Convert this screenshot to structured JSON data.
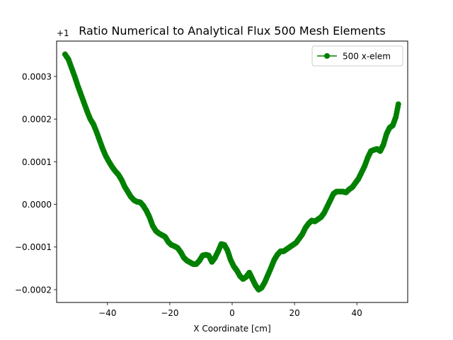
{
  "chart_data": {
    "type": "line",
    "title": "Ratio Numerical to Analytical Flux 500 Mesh Elements",
    "xlabel": "X Coordinate [cm]",
    "ylabel": "",
    "y_offset_label": "+1",
    "xlim": [
      -56.3,
      56.3
    ],
    "ylim": [
      -0.00023,
      0.000383
    ],
    "x_ticks": [
      -40,
      -20,
      0,
      20,
      40
    ],
    "x_tick_labels": [
      "−40",
      "−20",
      "0",
      "20",
      "40"
    ],
    "y_ticks": [
      -0.0002,
      -0.0001,
      0.0,
      0.0001,
      0.0002,
      0.0003
    ],
    "y_tick_labels": [
      "−0.0002",
      "−0.0001",
      "0.0000",
      "0.0001",
      "0.0002",
      "0.0003"
    ],
    "grid": false,
    "legend_position": "top-right",
    "series": [
      {
        "name": "500 x-elem",
        "color": "#008000",
        "marker": "circle",
        "x": [
          -53.6,
          -52.5,
          -51.5,
          -50.5,
          -49.5,
          -48.5,
          -47.5,
          -46.5,
          -45.5,
          -44.5,
          -43.5,
          -42.5,
          -41.5,
          -40.5,
          -39.5,
          -38.5,
          -37.5,
          -36.5,
          -35.5,
          -34.5,
          -33.5,
          -32.5,
          -31.5,
          -30.5,
          -29.5,
          -28.5,
          -27.5,
          -26.5,
          -25.5,
          -24.5,
          -23.5,
          -22.5,
          -21.5,
          -20.5,
          -19.5,
          -18.5,
          -17.5,
          -16.5,
          -15.5,
          -14.5,
          -13.5,
          -12.5,
          -11.5,
          -10.5,
          -9.5,
          -8.5,
          -7.5,
          -6.5,
          -5.5,
          -4.5,
          -3.5,
          -2.5,
          -1.5,
          -0.5,
          0.5,
          1.5,
          2.5,
          3.5,
          4.5,
          5.5,
          6.5,
          7.5,
          8.5,
          9.5,
          10.5,
          11.5,
          12.5,
          13.5,
          14.5,
          15.5,
          16.5,
          17.5,
          18.5,
          19.5,
          20.5,
          21.5,
          22.5,
          23.5,
          24.5,
          25.5,
          26.5,
          27.5,
          28.5,
          29.5,
          30.5,
          31.5,
          32.5,
          33.5,
          34.5,
          35.5,
          36.5,
          37.5,
          38.5,
          39.5,
          40.5,
          41.5,
          42.5,
          43.5,
          44.5,
          45.5,
          46.5,
          47.5,
          48.5,
          49.5,
          50.5,
          51.5,
          52.5,
          53.3
        ],
        "y": [
          0.000352,
          0.00034,
          0.00032,
          0.0003,
          0.000278,
          0.000258,
          0.000238,
          0.000218,
          0.0002,
          0.000188,
          0.00017,
          0.00015,
          0.00013,
          0.000113,
          0.0001,
          8.8e-05,
          7.8e-05,
          7e-05,
          5.8e-05,
          4.2e-05,
          3e-05,
          1.8e-05,
          1e-05,
          6e-06,
          5e-06,
          -3e-06,
          -1.5e-05,
          -3e-05,
          -5e-05,
          -6.2e-05,
          -6.8e-05,
          -7.2e-05,
          -7.6e-05,
          -8.8e-05,
          -9.5e-05,
          -9.8e-05,
          -0.000102,
          -0.000112,
          -0.000125,
          -0.000132,
          -0.000136,
          -0.00014,
          -0.00014,
          -0.000132,
          -0.00012,
          -0.000118,
          -0.00012,
          -0.000135,
          -0.000125,
          -0.00011,
          -9.3e-05,
          -9.5e-05,
          -0.000108,
          -0.00013,
          -0.000145,
          -0.000155,
          -0.000168,
          -0.000175,
          -0.00017,
          -0.00016,
          -0.000175,
          -0.00019,
          -0.0002,
          -0.000195,
          -0.000182,
          -0.000165,
          -0.000148,
          -0.00013,
          -0.000118,
          -0.00011,
          -0.00011,
          -0.000105,
          -0.0001,
          -9.5e-05,
          -9e-05,
          -8e-05,
          -7e-05,
          -5.5e-05,
          -4.5e-05,
          -3.8e-05,
          -4e-05,
          -3.5e-05,
          -3e-05,
          -2e-05,
          -5e-06,
          1e-05,
          2.5e-05,
          3e-05,
          3e-05,
          3e-05,
          2.8e-05,
          3.5e-05,
          4e-05,
          5e-05,
          6e-05,
          7.5e-05,
          9e-05,
          0.00011,
          0.000125,
          0.000128,
          0.00013,
          0.000125,
          0.00014,
          0.000165,
          0.00018,
          0.000185,
          0.000205,
          0.000235
        ]
      }
    ]
  }
}
